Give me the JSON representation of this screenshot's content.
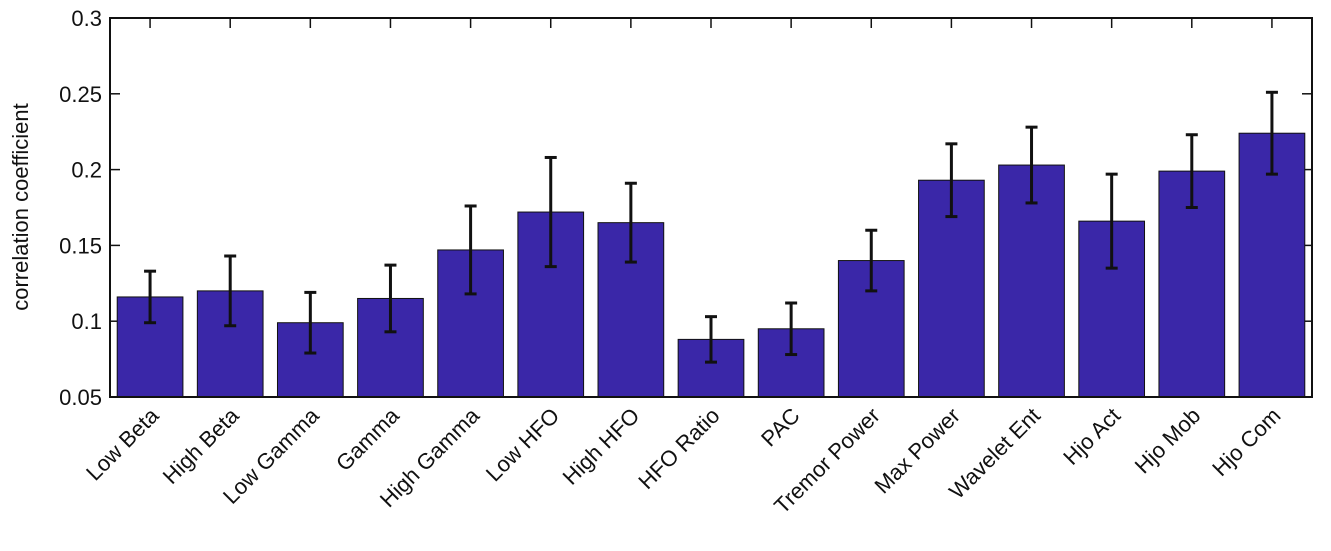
{
  "chart_data": {
    "type": "bar",
    "y_label": "correlation coefficient",
    "categories": [
      "Low Beta",
      "High Beta",
      "Low Gamma",
      "Gamma",
      "High Gamma",
      "Low HFO",
      "High HFO",
      "HFO Ratio",
      "PAC",
      "Tremor Power",
      "Max Power",
      "Wavelet Ent",
      "Hjo Act",
      "Hjo Mob",
      "Hjo Com"
    ],
    "values": [
      0.116,
      0.12,
      0.099,
      0.115,
      0.147,
      0.172,
      0.165,
      0.088,
      0.095,
      0.14,
      0.193,
      0.203,
      0.166,
      0.199,
      0.224
    ],
    "errors": [
      0.017,
      0.023,
      0.02,
      0.022,
      0.029,
      0.036,
      0.026,
      0.015,
      0.017,
      0.02,
      0.024,
      0.025,
      0.031,
      0.024,
      0.027
    ],
    "color": "#3a27a8",
    "ylim": [
      0.05,
      0.3
    ],
    "yticks": [
      0.05,
      0.1,
      0.15,
      0.2,
      0.25,
      0.3
    ],
    "grid": false
  }
}
